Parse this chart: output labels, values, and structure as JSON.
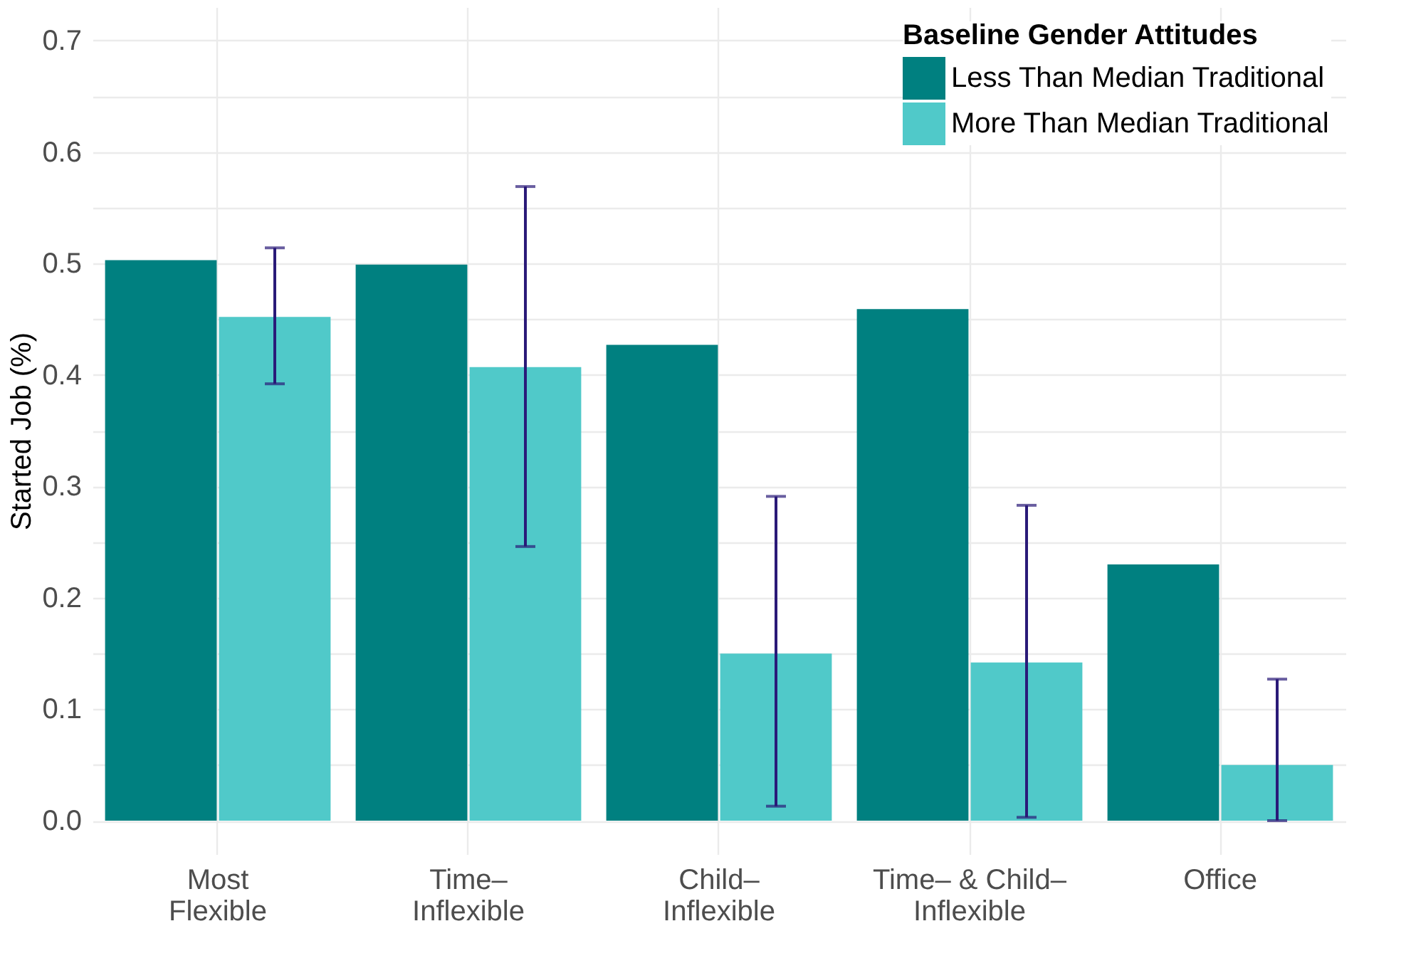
{
  "chart_data": {
    "type": "bar",
    "ylabel": "Started Job (%)",
    "legend_title": "Baseline Gender Attitudes",
    "categories": [
      "Most\nFlexible",
      "Time–\nInflexible",
      "Child–\nInflexible",
      "Time– & Child–\nInflexible",
      "Office"
    ],
    "series": [
      {
        "name": "Less Than Median Traditional",
        "color": "#008080",
        "values": [
          0.503,
          0.499,
          0.427,
          0.459,
          0.23
        ]
      },
      {
        "name": "More Than Median Traditional",
        "color": "#50c9c9",
        "values": [
          0.452,
          0.407,
          0.15,
          0.142,
          0.05
        ],
        "errors": [
          [
            0.392,
            0.514
          ],
          [
            0.246,
            0.569
          ],
          [
            0.013,
            0.291
          ],
          [
            0.003,
            0.283
          ],
          [
            0.0,
            0.127
          ]
        ]
      }
    ],
    "ylim": [
      -0.03,
      0.73
    ],
    "yticks": [
      {
        "value": 0,
        "label": "0.0"
      },
      {
        "value": 0.05,
        "label": null
      },
      0.1,
      {
        "value": 0.15,
        "label": null
      },
      0.2,
      {
        "value": 0.25,
        "label": null
      },
      0.3,
      {
        "value": 0.35,
        "label": null
      },
      0.4,
      {
        "value": 0.45,
        "label": null
      },
      0.5,
      {
        "value": 0.55,
        "label": null
      },
      0.6,
      {
        "value": 0.65,
        "label": null
      },
      0.7
    ],
    "grid": true,
    "legend": "top right"
  }
}
